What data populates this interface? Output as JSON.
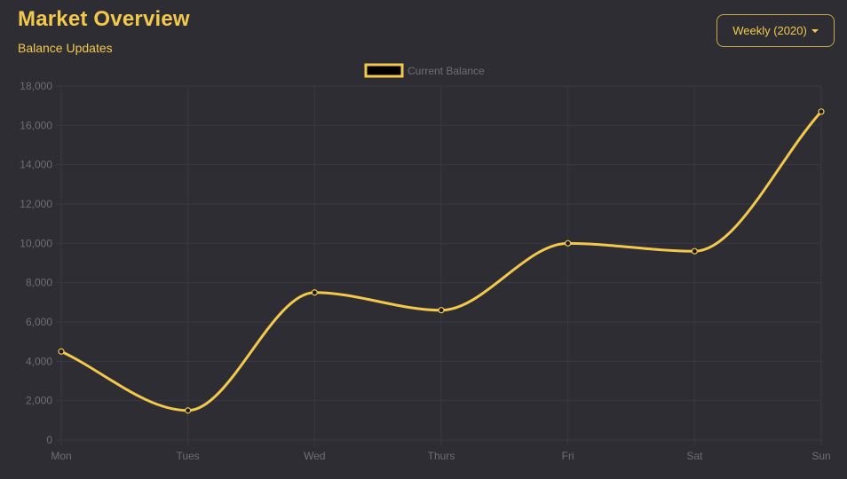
{
  "header": {
    "title": "Market Overview",
    "subtitle": "Balance Updates",
    "range_select": "Weekly (2020)"
  },
  "colors": {
    "accent": "#f2c94c",
    "background": "#2e2d33",
    "grid": "#3a393f",
    "tick_text": "#6f6e74",
    "point_fill": "#1a1a1a"
  },
  "chart_data": {
    "type": "line",
    "title": "",
    "xlabel": "",
    "ylabel": "",
    "categories": [
      "Mon",
      "Tues",
      "Wed",
      "Thurs",
      "Fri",
      "Sat",
      "Sun"
    ],
    "series": [
      {
        "name": "Current Balance",
        "values": [
          4500,
          1500,
          7500,
          6600,
          10000,
          9600,
          16700
        ]
      }
    ],
    "ylim": [
      0,
      18000
    ],
    "yticks": [
      0,
      2000,
      4000,
      6000,
      8000,
      10000,
      12000,
      14000,
      16000,
      18000
    ],
    "ytick_labels": [
      "0",
      "2,000",
      "4,000",
      "6,000",
      "8,000",
      "10,000",
      "12,000",
      "14,000",
      "16,000",
      "18,000"
    ],
    "grid": true,
    "legend": "top-center",
    "smooth": true
  }
}
